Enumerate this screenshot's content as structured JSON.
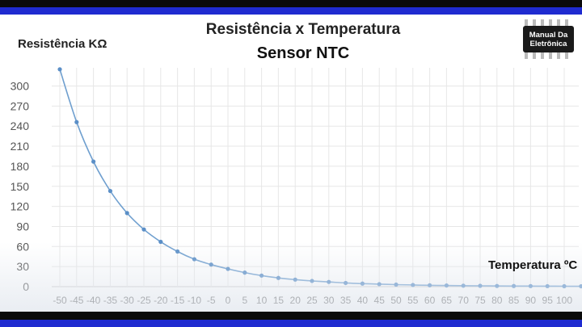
{
  "logo": {
    "line1": "Manual Da",
    "line2": "Eletrônica"
  },
  "colors": {
    "line": "#6f9fcf",
    "marker": "#5b8fc7",
    "grid": "#e7e7e7",
    "brand_blue": "#1f2bd0"
  },
  "chart_data": {
    "type": "line",
    "title": "Resistência x Temperatura",
    "subtitle": "Sensor NTC",
    "ylabel": "Resistência KΩ",
    "xlabel": "Temperatura ºC",
    "ylim": [
      0,
      300
    ],
    "yticks": [
      0,
      30,
      60,
      90,
      120,
      150,
      180,
      210,
      240,
      270,
      300
    ],
    "x": [
      -50,
      -45,
      -40,
      -35,
      -30,
      -25,
      -20,
      -15,
      -10,
      -5,
      0,
      5,
      10,
      15,
      20,
      25,
      30,
      35,
      40,
      45,
      50,
      55,
      60,
      65,
      70,
      75,
      80,
      85,
      90,
      95,
      100,
      105
    ],
    "values": [
      325,
      246,
      187,
      143,
      110,
      85.5,
      67,
      52.5,
      41,
      33,
      26.5,
      21,
      16.5,
      13,
      10.5,
      8.5,
      7,
      5.5,
      4.5,
      3.7,
      3,
      2.5,
      2,
      1.7,
      1.4,
      1.2,
      1,
      0.9,
      0.8,
      0.7,
      0.6,
      0.5
    ],
    "xtick_labels": [
      "-50",
      "-45",
      "-40",
      "-35",
      "-30",
      "-25",
      "-20",
      "-15",
      "-10",
      "-5",
      "0",
      "5",
      "10",
      "15",
      "20",
      "25",
      "30",
      "35",
      "40",
      "45",
      "50",
      "55",
      "60",
      "65",
      "70",
      "75",
      "80",
      "85",
      "90",
      "95",
      "100"
    ],
    "grid": true,
    "legend": "none"
  }
}
